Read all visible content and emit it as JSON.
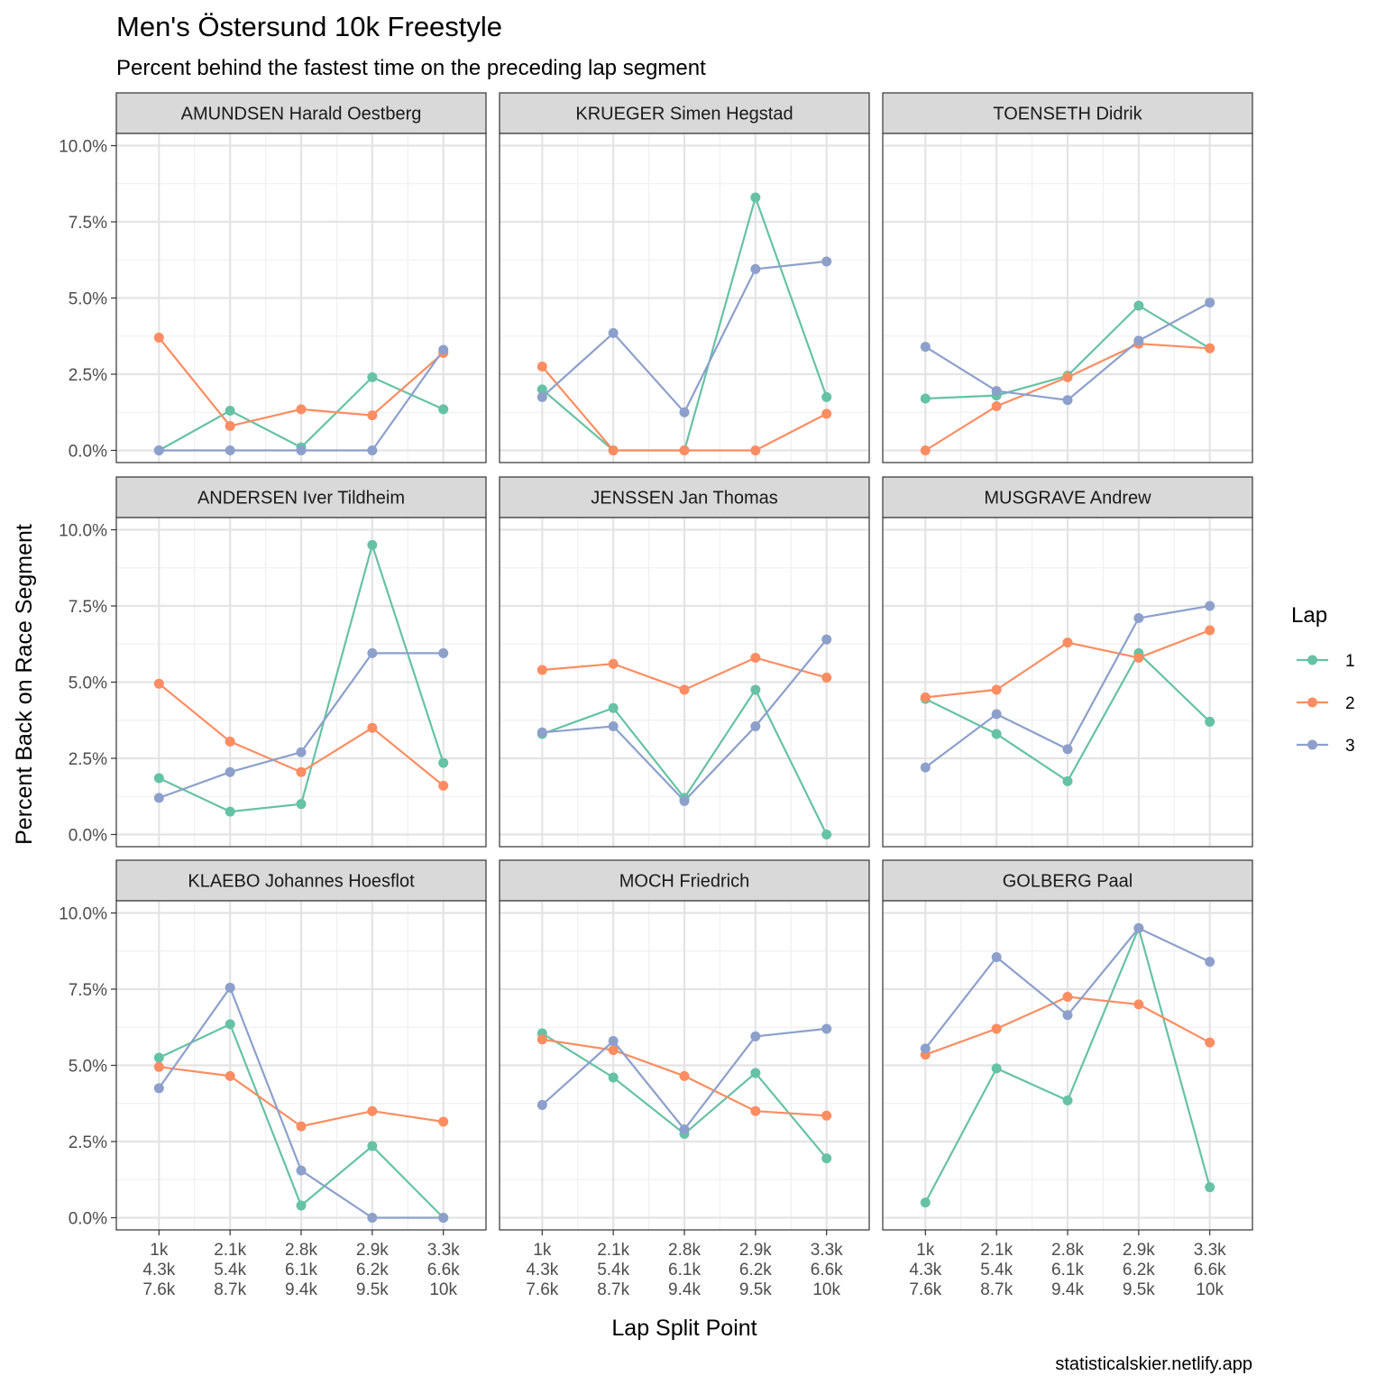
{
  "chart_data": {
    "type": "line",
    "title": "Men's Östersund 10k Freestyle",
    "subtitle": "Percent behind the fastest time on the preceding lap segment",
    "xlabel": "Lap Split Point",
    "ylabel": "Percent Back on Race Segment",
    "caption": "statisticalskier.netlify.app",
    "x_ticks": [
      [
        "1k",
        "4.3k",
        "7.6k"
      ],
      [
        "2.1k",
        "5.4k",
        "8.7k"
      ],
      [
        "2.8k",
        "6.1k",
        "9.4k"
      ],
      [
        "2.9k",
        "6.2k",
        "9.5k"
      ],
      [
        "3.3k",
        "6.6k",
        "10k"
      ]
    ],
    "y_ticks": [
      "0.0%",
      "2.5%",
      "5.0%",
      "7.5%",
      "10.0%"
    ],
    "ylim": [
      -0.4,
      10.4
    ],
    "grid": true,
    "legend": {
      "title": "Lap",
      "position": "right",
      "entries": [
        {
          "label": "1",
          "color": "#66c2a5"
        },
        {
          "label": "2",
          "color": "#fc8d62"
        },
        {
          "label": "3",
          "color": "#8da0cb"
        }
      ]
    },
    "panels": [
      {
        "name": "AMUNDSEN Harald Oestberg",
        "series": [
          {
            "lap": "1",
            "values": [
              0.0,
              1.3,
              0.1,
              2.4,
              1.35
            ]
          },
          {
            "lap": "2",
            "values": [
              3.7,
              0.8,
              1.35,
              1.15,
              3.2
            ]
          },
          {
            "lap": "3",
            "values": [
              0.0,
              0.0,
              0.0,
              0.0,
              3.3
            ]
          }
        ]
      },
      {
        "name": "KRUEGER Simen Hegstad",
        "series": [
          {
            "lap": "1",
            "values": [
              2.0,
              0.0,
              0.0,
              8.3,
              1.75
            ]
          },
          {
            "lap": "2",
            "values": [
              2.75,
              0.0,
              0.0,
              0.0,
              1.2
            ]
          },
          {
            "lap": "3",
            "values": [
              1.75,
              3.85,
              1.25,
              5.95,
              6.2
            ]
          }
        ]
      },
      {
        "name": "TOENSETH Didrik",
        "series": [
          {
            "lap": "1",
            "values": [
              1.7,
              1.8,
              2.45,
              4.75,
              3.35
            ]
          },
          {
            "lap": "2",
            "values": [
              0.0,
              1.45,
              2.4,
              3.5,
              3.35
            ]
          },
          {
            "lap": "3",
            "values": [
              3.4,
              1.95,
              1.65,
              3.6,
              4.85
            ]
          }
        ]
      },
      {
        "name": "ANDERSEN Iver Tildheim",
        "series": [
          {
            "lap": "1",
            "values": [
              1.85,
              0.75,
              1.0,
              9.5,
              2.35
            ]
          },
          {
            "lap": "2",
            "values": [
              4.95,
              3.05,
              2.05,
              3.5,
              1.6
            ]
          },
          {
            "lap": "3",
            "values": [
              1.2,
              2.05,
              2.7,
              5.95,
              5.95
            ]
          }
        ]
      },
      {
        "name": "JENSSEN Jan Thomas",
        "series": [
          {
            "lap": "1",
            "values": [
              3.3,
              4.15,
              1.2,
              4.75,
              0.0
            ]
          },
          {
            "lap": "2",
            "values": [
              5.4,
              5.6,
              4.75,
              5.8,
              5.15
            ]
          },
          {
            "lap": "3",
            "values": [
              3.35,
              3.55,
              1.1,
              3.55,
              6.4
            ]
          }
        ]
      },
      {
        "name": "MUSGRAVE Andrew",
        "series": [
          {
            "lap": "1",
            "values": [
              4.45,
              3.3,
              1.75,
              5.95,
              3.7
            ]
          },
          {
            "lap": "2",
            "values": [
              4.5,
              4.75,
              6.3,
              5.8,
              6.7
            ]
          },
          {
            "lap": "3",
            "values": [
              2.2,
              3.95,
              2.8,
              7.1,
              7.5
            ]
          }
        ]
      },
      {
        "name": "KLAEBO Johannes Hoesflot",
        "series": [
          {
            "lap": "1",
            "values": [
              5.25,
              6.35,
              0.4,
              2.35,
              0.0
            ]
          },
          {
            "lap": "2",
            "values": [
              4.95,
              4.65,
              3.0,
              3.5,
              3.15
            ]
          },
          {
            "lap": "3",
            "values": [
              4.25,
              7.55,
              1.55,
              0.0,
              0.0
            ]
          }
        ]
      },
      {
        "name": "MOCH Friedrich",
        "series": [
          {
            "lap": "1",
            "values": [
              6.05,
              4.6,
              2.75,
              4.75,
              1.95
            ]
          },
          {
            "lap": "2",
            "values": [
              5.85,
              5.5,
              4.65,
              3.5,
              3.35
            ]
          },
          {
            "lap": "3",
            "values": [
              3.7,
              5.8,
              2.9,
              5.95,
              6.2
            ]
          }
        ]
      },
      {
        "name": "GOLBERG Paal",
        "series": [
          {
            "lap": "1",
            "values": [
              0.5,
              4.9,
              3.85,
              9.5,
              1.0
            ]
          },
          {
            "lap": "2",
            "values": [
              5.35,
              6.2,
              7.25,
              7.0,
              5.75
            ]
          },
          {
            "lap": "3",
            "values": [
              5.55,
              8.55,
              6.65,
              9.5,
              8.4
            ]
          }
        ]
      }
    ]
  }
}
